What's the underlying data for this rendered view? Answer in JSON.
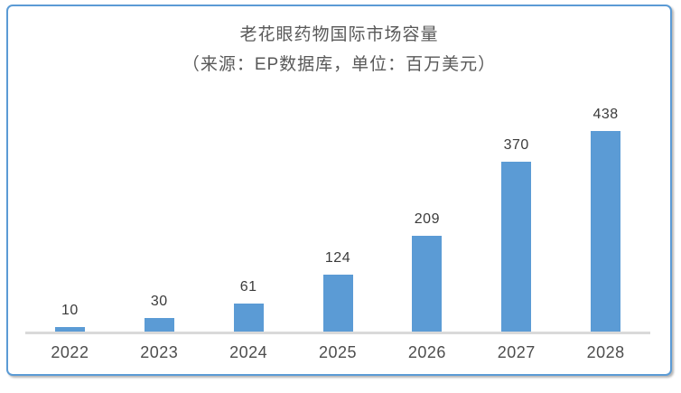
{
  "frame": {
    "border_color": "#5b9bd5"
  },
  "chart_data": {
    "type": "bar",
    "title": "老花眼药物国际市场容量",
    "subtitle": "（来源：EP数据库，单位：百万美元）",
    "categories": [
      "2022",
      "2023",
      "2024",
      "2025",
      "2026",
      "2027",
      "2028"
    ],
    "values": [
      10,
      30,
      61,
      124,
      209,
      370,
      438
    ],
    "xlabel": "",
    "ylabel": "",
    "ylim": [
      0,
      460
    ],
    "grid": false,
    "legend": "none",
    "data_labels": true,
    "bar_color": "#5b9bd5",
    "axis_line_color": "#d9d9d9",
    "data_label_color": "#3b3b3b",
    "tick_label_color": "#4d4d4d",
    "title_color": "#595959"
  }
}
